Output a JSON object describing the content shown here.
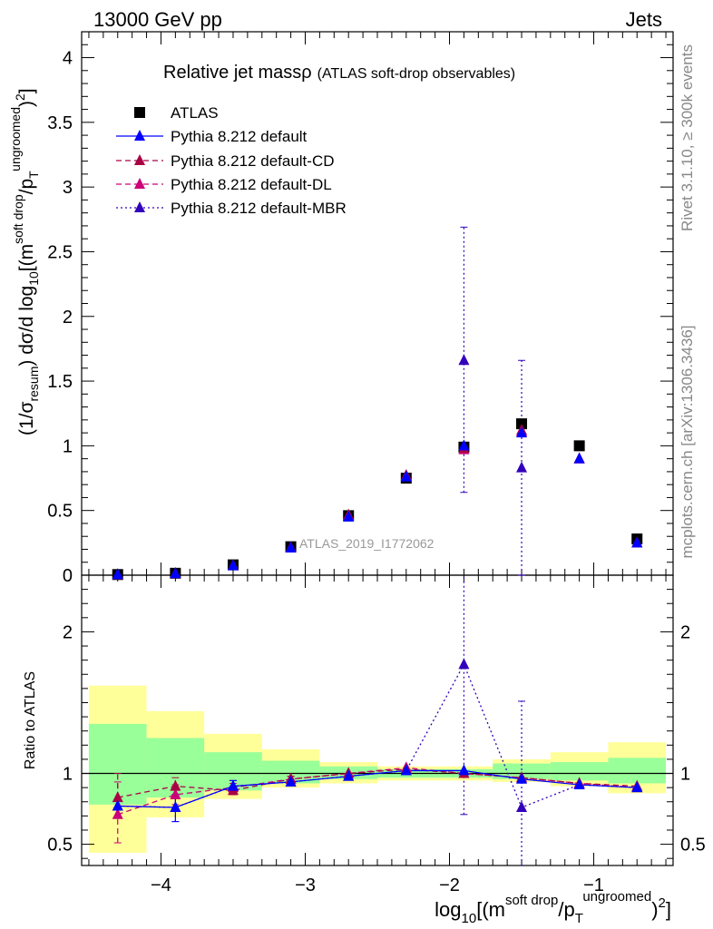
{
  "header": {
    "left": "13000 GeV pp",
    "right": "Jets",
    "title_main": "Relative jet massρ",
    "title_sub": "(ATLAS soft-drop observables)",
    "analysis_tag": "ATLAS_2019_I1772062"
  },
  "side_labels": {
    "rivet": "Rivet 3.1.10, ≥ 300k events",
    "mcplots": "mcplots.cern.ch [arXiv:1306.3436]"
  },
  "axes": {
    "top_ylabel": {
      "prefix": "(1/σ",
      "prefix_sub": "resum",
      "mid": ") dσ/d log",
      "log_sub": "10",
      "bracket": "[(m",
      "sup1": "soft drop",
      "slash": "/p",
      "sub_T": "T",
      "sup2": "ungroomed",
      "close": ")",
      "sup3": "2",
      "end": "]"
    },
    "bottom_ylabel": "Ratio to ATLAS",
    "xlabel": {
      "start": "log",
      "sub": "10",
      "bracket": "[(m",
      "sup1": "soft drop",
      "slash": "/p",
      "sub_T": "T",
      "sup2": "ungroomed",
      "close": ")",
      "sup3": "2",
      "end": "]"
    },
    "x_ticks": [
      "−4",
      "−3",
      "−2",
      "−1"
    ],
    "top_y_ticks": [
      "0",
      "0.5",
      "1",
      "1.5",
      "2",
      "2.5",
      "3",
      "3.5",
      "4"
    ],
    "ratio_y_ticks": [
      "0.5",
      "1",
      "2"
    ]
  },
  "colors": {
    "atlas": "#000000",
    "default": "#0000ff",
    "cd": "#aa0044",
    "dl": "#cc0077",
    "mbr": "#3300bb",
    "band_green": "#99ff99",
    "band_yellow": "#ffff99"
  },
  "chart_data": {
    "type": "scatter",
    "title": "Relative jet massρ (ATLAS soft-drop observables)",
    "xlim": [
      -4.55,
      -0.45
    ],
    "ylim": [
      0,
      4.2
    ],
    "ratio_ylim": [
      0.35,
      2.4
    ],
    "x": [
      -4.3,
      -3.9,
      -3.5,
      -3.1,
      -2.7,
      -2.3,
      -1.9,
      -1.5,
      -1.1,
      -0.7
    ],
    "bins": [
      [
        -4.5,
        -4.1
      ],
      [
        -4.1,
        -3.7
      ],
      [
        -3.7,
        -3.3
      ],
      [
        -3.3,
        -2.9
      ],
      [
        -2.9,
        -2.5
      ],
      [
        -2.5,
        -2.1
      ],
      [
        -2.1,
        -1.7
      ],
      [
        -1.7,
        -1.3
      ],
      [
        -1.3,
        -0.9
      ],
      [
        -0.9,
        -0.5
      ]
    ],
    "band_green": [
      [
        0.78,
        1.35
      ],
      [
        0.83,
        1.25
      ],
      [
        0.88,
        1.15
      ],
      [
        0.93,
        1.09
      ],
      [
        0.96,
        1.05
      ],
      [
        0.97,
        1.03
      ],
      [
        0.97,
        1.03
      ],
      [
        0.96,
        1.07
      ],
      [
        0.95,
        1.08
      ],
      [
        0.93,
        1.11
      ]
    ],
    "band_yellow": [
      [
        0.44,
        1.62
      ],
      [
        0.69,
        1.44
      ],
      [
        0.82,
        1.28
      ],
      [
        0.9,
        1.17
      ],
      [
        0.93,
        1.08
      ],
      [
        0.95,
        1.05
      ],
      [
        0.95,
        1.05
      ],
      [
        0.94,
        1.1
      ],
      [
        0.91,
        1.15
      ],
      [
        0.86,
        1.22
      ]
    ],
    "series": [
      {
        "name": "ATLAS",
        "key": "atlas",
        "marker": "square",
        "line": "none",
        "values": [
          0.005,
          0.015,
          0.08,
          0.22,
          0.46,
          0.75,
          0.99,
          1.17,
          1.0,
          0.28
        ]
      },
      {
        "name": "Pythia 8.212 default",
        "key": "default",
        "marker": "triangle",
        "line": "solid",
        "values": [
          0.004,
          0.012,
          0.073,
          0.21,
          0.45,
          0.76,
          1.0,
          1.1,
          0.9,
          0.25
        ],
        "ratio": [
          0.77,
          0.76,
          0.91,
          0.94,
          0.98,
          1.02,
          1.02,
          0.96,
          0.92,
          0.9
        ],
        "ratio_err": [
          [
            0.77,
            0.77
          ],
          [
            0.66,
            0.85
          ],
          [
            0.87,
            0.95
          ],
          [
            0.93,
            0.95
          ],
          [
            0.97,
            0.99
          ],
          [
            1.01,
            1.03
          ],
          [
            1.01,
            1.03
          ],
          [
            0.95,
            0.97
          ],
          [
            0.91,
            0.93
          ],
          [
            0.89,
            0.91
          ]
        ]
      },
      {
        "name": "Pythia 8.212 default-CD",
        "key": "cd",
        "marker": "triangle",
        "line": "dashed",
        "values": [
          0.004,
          0.013,
          0.075,
          0.215,
          0.465,
          0.77,
          0.98,
          1.12,
          0.9,
          0.25
        ],
        "ratio": [
          0.83,
          0.91,
          0.88,
          0.96,
          1.0,
          1.03,
          1.0,
          0.97,
          0.93,
          0.91
        ],
        "ratio_err": [
          [
            0.7,
            1.0
          ],
          [
            0.85,
            0.97
          ],
          [
            0.85,
            0.91
          ],
          [
            0.94,
            0.98
          ],
          [
            0.99,
            1.01
          ],
          [
            1.02,
            1.04
          ],
          [
            0.99,
            1.01
          ],
          [
            0.96,
            0.98
          ],
          [
            0.92,
            0.94
          ],
          [
            0.9,
            0.92
          ]
        ]
      },
      {
        "name": "Pythia 8.212 default-DL",
        "key": "dl",
        "marker": "triangle",
        "line": "dashed",
        "values": [
          0.003,
          0.012,
          0.074,
          0.21,
          0.46,
          0.77,
          0.97,
          1.11,
          0.9,
          0.25
        ],
        "ratio": [
          0.71,
          0.85,
          0.9,
          0.96,
          1.0,
          1.04,
          1.0,
          0.97,
          0.93,
          0.9
        ],
        "ratio_err": [
          [
            0.51,
            0.94
          ],
          [
            0.78,
            0.92
          ],
          [
            0.87,
            0.93
          ],
          [
            0.94,
            0.98
          ],
          [
            0.99,
            1.01
          ],
          [
            1.03,
            1.05
          ],
          [
            0.99,
            1.01
          ],
          [
            0.96,
            0.98
          ],
          [
            0.92,
            0.94
          ],
          [
            0.89,
            0.91
          ]
        ]
      },
      {
        "name": "Pythia 8.212 default-MBR",
        "key": "mbr",
        "marker": "triangle",
        "line": "dotted",
        "values": [
          0.004,
          0.012,
          0.074,
          0.21,
          0.46,
          0.76,
          1.66,
          0.83,
          0.9,
          0.25
        ],
        "ratio": [
          0.77,
          0.76,
          0.91,
          0.94,
          0.98,
          1.02,
          1.77,
          0.76,
          0.92,
          0.9
        ],
        "ratio_err": [
          [
            0.77,
            0.77
          ],
          [
            0.66,
            0.85
          ],
          [
            0.87,
            0.95
          ],
          [
            0.93,
            0.95
          ],
          [
            0.97,
            0.99
          ],
          [
            1.01,
            1.03
          ],
          [
            0.71,
            2.4
          ],
          [
            0.35,
            1.51
          ],
          [
            0.91,
            0.93
          ],
          [
            0.89,
            0.91
          ]
        ],
        "abs_err": [
          [
            0.004,
            0.004
          ],
          [
            0.012,
            0.012
          ],
          [
            0.074,
            0.074
          ],
          [
            0.21,
            0.21
          ],
          [
            0.46,
            0.46
          ],
          [
            0.76,
            0.76
          ],
          [
            0.64,
            2.69
          ],
          [
            0,
            1.66
          ],
          [
            0.9,
            0.9
          ],
          [
            0.25,
            0.25
          ]
        ]
      }
    ]
  }
}
